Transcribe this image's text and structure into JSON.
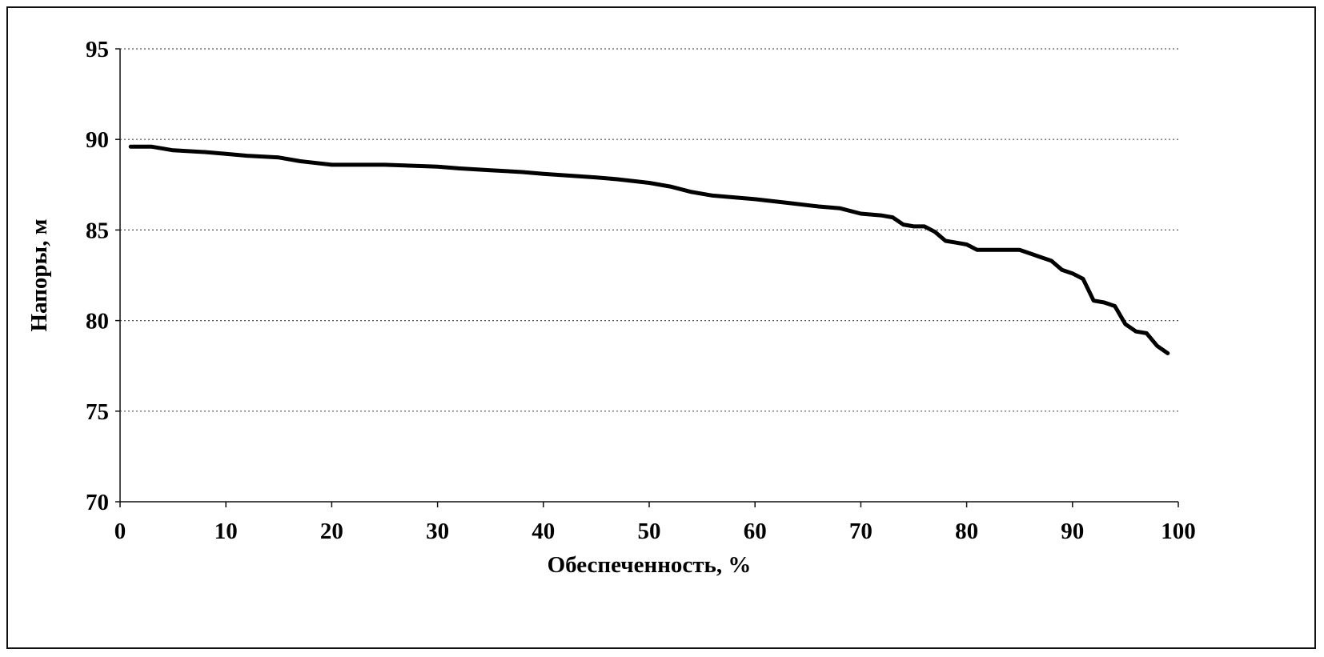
{
  "chart_data": {
    "type": "line",
    "title": "",
    "xlabel": "Обеспеченность, %",
    "ylabel": "Напоры, м",
    "xlim": [
      0,
      100
    ],
    "ylim": [
      70,
      95
    ],
    "x_ticks": [
      "0",
      "10",
      "20",
      "30",
      "40",
      "50",
      "60",
      "70",
      "80",
      "90",
      "100"
    ],
    "y_ticks": [
      "70",
      "75",
      "80",
      "85",
      "90",
      "95"
    ],
    "grid": "horizontal-dotted",
    "legend": "none",
    "line_color": "#000000",
    "series": [
      {
        "x": [
          1,
          3,
          5,
          8,
          10,
          12,
          15,
          17,
          20,
          25,
          30,
          32,
          35,
          38,
          40,
          45,
          47,
          50,
          52,
          54,
          56,
          60,
          63,
          66,
          68,
          70,
          72,
          73,
          74,
          75,
          76,
          77,
          78,
          79,
          80,
          81,
          82,
          83,
          85,
          86,
          87,
          88,
          89,
          90,
          91,
          92,
          93,
          94,
          95,
          96,
          97,
          98,
          99
        ],
        "y": [
          89.6,
          89.6,
          89.4,
          89.3,
          89.2,
          89.1,
          89.0,
          88.8,
          88.6,
          88.6,
          88.5,
          88.4,
          88.3,
          88.2,
          88.1,
          87.9,
          87.8,
          87.6,
          87.4,
          87.1,
          86.9,
          86.7,
          86.5,
          86.3,
          86.2,
          85.9,
          85.8,
          85.7,
          85.3,
          85.2,
          85.2,
          84.9,
          84.4,
          84.3,
          84.2,
          83.9,
          83.9,
          83.9,
          83.9,
          83.7,
          83.5,
          83.3,
          82.8,
          82.6,
          82.3,
          81.1,
          81.0,
          80.8,
          79.8,
          79.4,
          79.3,
          78.6,
          78.2
        ]
      }
    ]
  }
}
